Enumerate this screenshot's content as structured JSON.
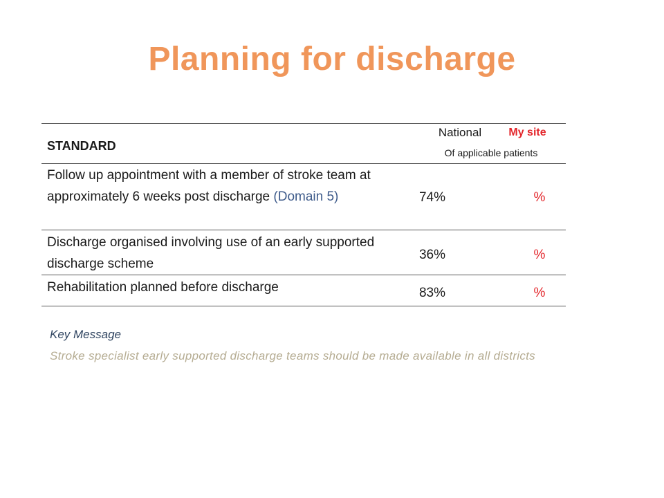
{
  "slide": {
    "title": "Planning for discharge"
  },
  "table": {
    "header": {
      "standard": "STANDARD",
      "national": "National",
      "my_site": "My site",
      "subheader": "Of applicable patients"
    },
    "rows": [
      {
        "standard": "Follow up appointment with a member of stroke team at approximately 6 weeks post discharge",
        "domain": "(Domain 5)",
        "national": "74%",
        "my_site": "%"
      },
      {
        "standard": "Discharge organised involving use of an early supported discharge scheme",
        "national": "36%",
        "my_site": "%"
      },
      {
        "standard": "Rehabilitation planned before discharge",
        "national": "83%",
        "my_site": "%"
      }
    ]
  },
  "key": {
    "heading": "Key Message",
    "message": "Stroke specialist early supported discharge teams should be made available in all districts"
  },
  "colors": {
    "title": "#f0965a",
    "my_site": "#e3262b",
    "domain": "#3d5a8a",
    "key_heading": "#2f4460",
    "key_message": "#b5ac92"
  }
}
